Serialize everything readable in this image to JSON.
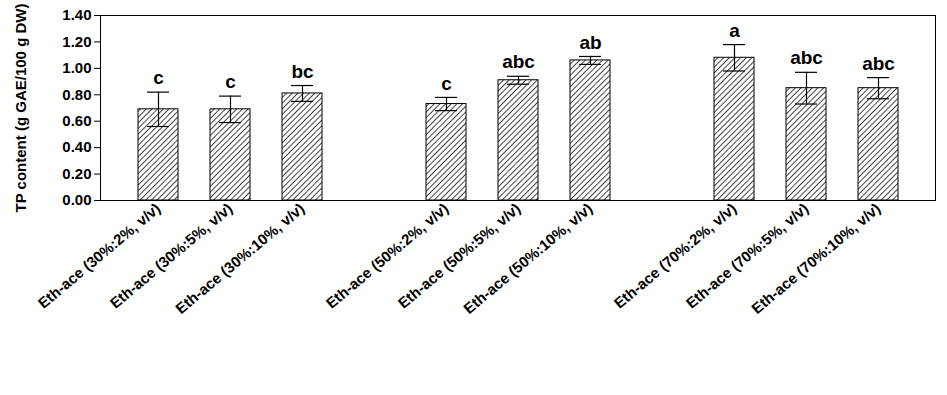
{
  "chart_data": {
    "type": "bar",
    "y_label": "TP content (g GAE/100 g DW)",
    "categories": [
      "Eth-ace (30%:2%, v/v)",
      "Eth-ace (30%:5%, v/v)",
      "Eth-ace (30%:10%, v/v)",
      null,
      "Eth-ace (50%:2%, v/v)",
      "Eth-ace (50%:5%, v/v)",
      "Eth-ace (50%:10%, v/v)",
      null,
      "Eth-ace (70%:2%, v/v)",
      "Eth-ace (70%:5%, v/v)",
      "Eth-ace (70%:10%, v/v)"
    ],
    "values": [
      0.69,
      0.69,
      0.81,
      null,
      0.73,
      0.91,
      1.06,
      null,
      1.08,
      0.85,
      0.85
    ],
    "errors": [
      0.13,
      0.1,
      0.06,
      null,
      0.05,
      0.03,
      0.03,
      null,
      0.1,
      0.12,
      0.08
    ],
    "annotations": [
      "c",
      "c",
      "bc",
      null,
      "c",
      "abc",
      "ab",
      null,
      "a",
      "abc",
      "abc"
    ],
    "color": "#444444",
    "ylim": [
      0,
      1.4
    ],
    "yticks": [
      {
        "value": 0,
        "label": "0.00"
      },
      {
        "value": 0.2,
        "label": "0.20"
      },
      {
        "value": 0.4,
        "label": "0.40"
      },
      {
        "value": 0.6,
        "label": "0.60"
      },
      {
        "value": 0.8,
        "label": "0.80"
      },
      {
        "value": 1.0,
        "label": "1.00"
      },
      {
        "value": 1.2,
        "label": "1.20"
      },
      {
        "value": 1.4,
        "label": "1.40"
      }
    ],
    "grid": false
  }
}
